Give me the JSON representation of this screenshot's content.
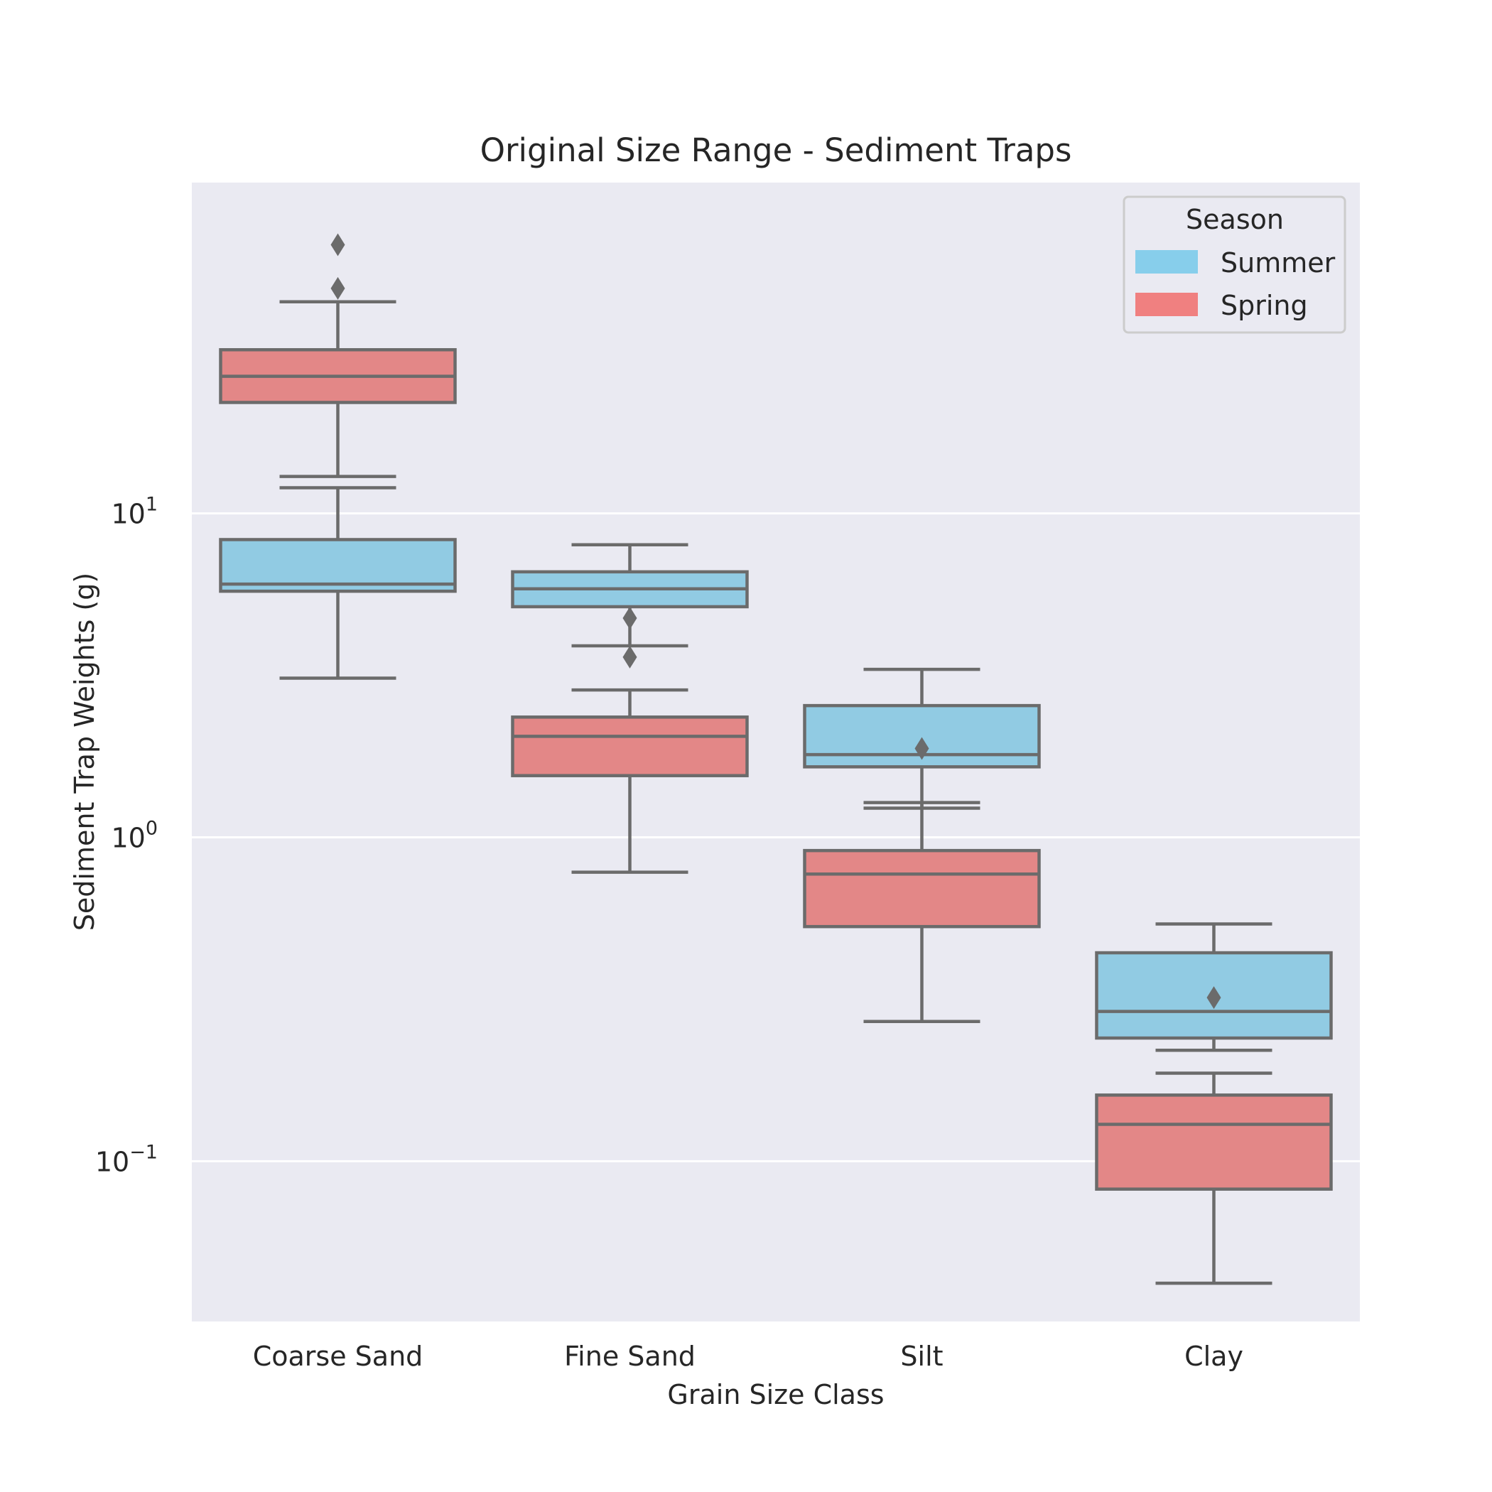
{
  "chart_data": {
    "type": "box",
    "title": "Original Size Range - Sediment Traps",
    "xlabel": "Grain Size Class",
    "ylabel": "Sediment Trap Weights (g)",
    "y_scale": "log",
    "ylim": [
      0.032,
      105
    ],
    "yticks": [
      {
        "value": 10,
        "base": "10",
        "exp": "1"
      },
      {
        "value": 1,
        "base": "10",
        "exp": "0"
      },
      {
        "value": 0.1,
        "base": "10",
        "exp": "−1"
      }
    ],
    "grid": true,
    "categories": [
      "Coarse Sand",
      "Fine Sand",
      "Silt",
      "Clay"
    ],
    "legend": {
      "title": "Season",
      "placement": "top-right",
      "items": [
        {
          "label": "Summer",
          "color": "#87CEEB"
        },
        {
          "label": "Spring",
          "color": "#F08080"
        }
      ]
    },
    "series": [
      {
        "name": "Summer",
        "color": "#87CEEB",
        "boxes": [
          {
            "whislo": 3.1,
            "q1": 5.75,
            "med": 6.05,
            "q3": 8.3,
            "whishi": 12.0,
            "fliers": []
          },
          {
            "whislo": 3.9,
            "q1": 5.15,
            "med": 5.85,
            "q3": 6.6,
            "whishi": 8.0,
            "fliers": [
              4.75
            ]
          },
          {
            "whislo": 1.23,
            "q1": 1.65,
            "med": 1.8,
            "q3": 2.55,
            "whishi": 3.3,
            "fliers": [
              1.88
            ]
          },
          {
            "whislo": 0.22,
            "q1": 0.24,
            "med": 0.29,
            "q3": 0.44,
            "whishi": 0.54,
            "fliers": [
              0.32
            ]
          }
        ]
      },
      {
        "name": "Spring",
        "color": "#F08080",
        "boxes": [
          {
            "whislo": 13.0,
            "q1": 22.0,
            "med": 26.5,
            "q3": 32.0,
            "whishi": 45.0,
            "fliers": [
              49.5,
              67.5
            ]
          },
          {
            "whislo": 0.78,
            "q1": 1.55,
            "med": 2.05,
            "q3": 2.35,
            "whishi": 2.85,
            "fliers": [
              3.6
            ]
          },
          {
            "whislo": 0.27,
            "q1": 0.53,
            "med": 0.77,
            "q3": 0.91,
            "whishi": 1.28,
            "fliers": []
          },
          {
            "whislo": 0.042,
            "q1": 0.082,
            "med": 0.13,
            "q3": 0.16,
            "whishi": 0.187,
            "fliers": []
          }
        ]
      }
    ]
  }
}
